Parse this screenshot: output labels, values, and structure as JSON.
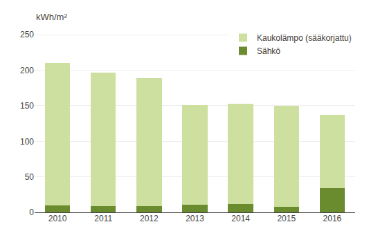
{
  "chart_data": {
    "type": "bar",
    "stacked": true,
    "categories": [
      "2010",
      "2011",
      "2012",
      "2013",
      "2014",
      "2015",
      "2016"
    ],
    "series": [
      {
        "name": "Sähkö",
        "color": "#6b8c2e",
        "values": [
          10,
          9,
          9,
          11,
          12,
          8,
          34
        ]
      },
      {
        "name": "Kaukolämpo (sääkorjattu)",
        "color": "#cee0a0",
        "values": [
          200,
          188,
          180,
          140,
          141,
          142,
          103
        ]
      }
    ],
    "ylabel": "kWh/m²",
    "ylim": [
      0,
      260
    ],
    "yticks": [
      0,
      50,
      100,
      150,
      200,
      250
    ],
    "grid": true,
    "legend": "upper right"
  }
}
